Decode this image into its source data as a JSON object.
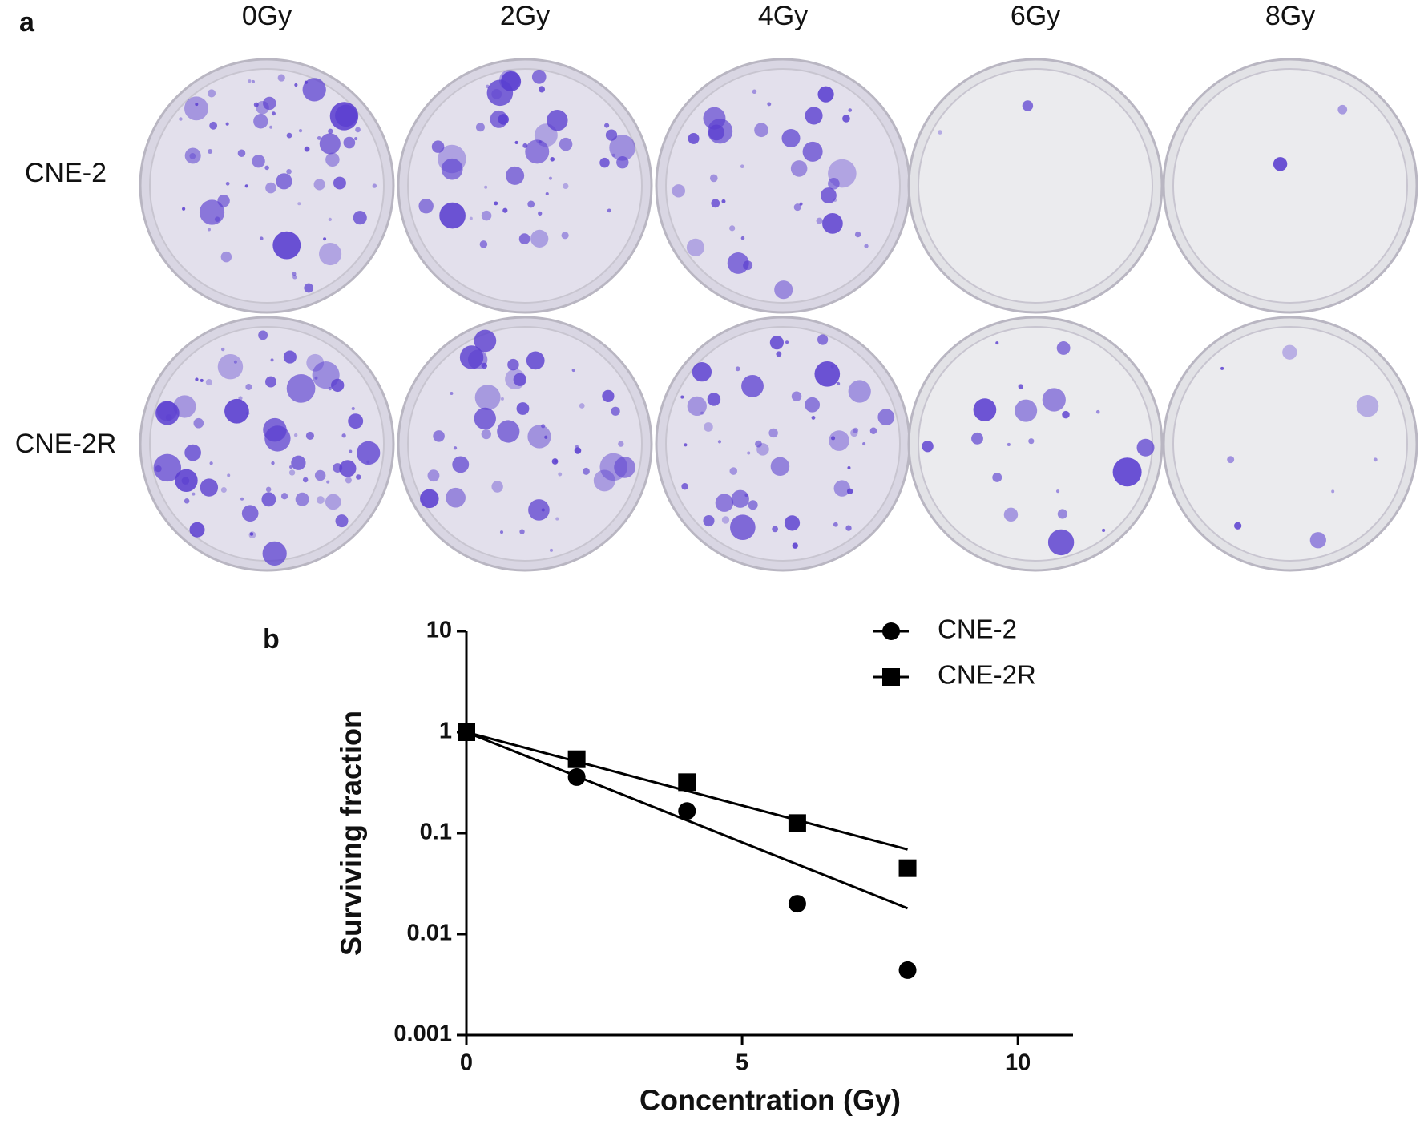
{
  "panel_a": {
    "label": "a",
    "doses": [
      "0Gy",
      "2Gy",
      "4Gy",
      "6Gy",
      "8Gy"
    ],
    "rows": [
      "CNE-2",
      "CNE-2R"
    ]
  },
  "chart_data": {
    "type": "scatter",
    "panel_label": "b",
    "x_label": "Concentration (Gy)",
    "y_label": "Surviving fraction",
    "x": [
      0,
      2,
      4,
      6,
      8
    ],
    "series": [
      {
        "name": "CNE-2",
        "marker": "circle",
        "color": "#000000",
        "values": [
          1,
          0.36,
          0.166,
          0.02,
          0.0044
        ],
        "fit": {
          "x": [
            0,
            8
          ],
          "values": [
            1,
            0.018
          ]
        }
      },
      {
        "name": "CNE-2R",
        "marker": "square",
        "color": "#000000",
        "values": [
          1,
          0.54,
          0.32,
          0.126,
          0.045
        ],
        "fit": {
          "x": [
            0,
            8
          ],
          "values": [
            1,
            0.069
          ]
        }
      }
    ],
    "xlim": [
      0,
      11
    ],
    "xticks": [
      0,
      5,
      10
    ],
    "ylim": [
      0.001,
      10
    ],
    "yticks": [
      0.001,
      0.01,
      0.1,
      1,
      10
    ],
    "log_y": true,
    "legend": "top-right"
  }
}
